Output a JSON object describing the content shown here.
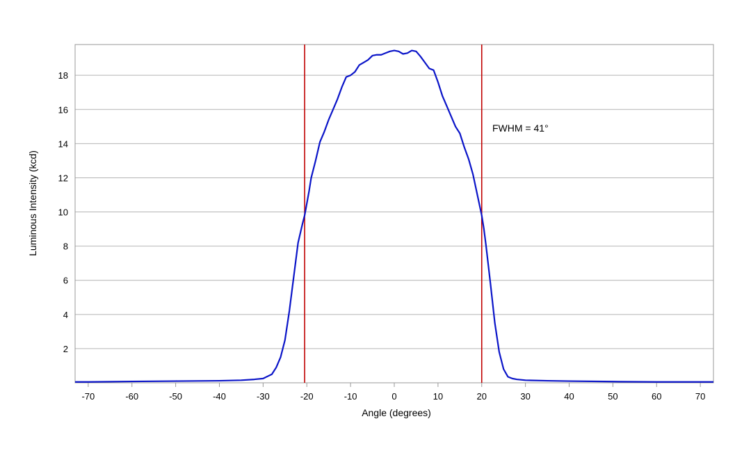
{
  "chart_data": {
    "type": "line",
    "title": "",
    "xlabel": "Angle (degrees)",
    "ylabel": "Luminous Intensity (kcd)",
    "xlim": [
      -73,
      73
    ],
    "ylim": [
      0,
      19.8
    ],
    "x_ticks": [
      -70,
      -60,
      -50,
      -40,
      -30,
      -20,
      -10,
      0,
      10,
      20,
      30,
      40,
      50,
      60,
      70
    ],
    "y_ticks": [
      2,
      4,
      6,
      8,
      10,
      12,
      14,
      16,
      18
    ],
    "grid": "horizontal",
    "legend": "none",
    "annotation": "FWHM = 41°",
    "colors": {
      "series": "#0a14c8",
      "markers": "#c00000",
      "grid": "#b4b4b4",
      "frame": "#999999"
    },
    "vertical_markers": [
      -20.5,
      20
    ],
    "series": [
      {
        "x": [
          -73,
          -70,
          -60,
          -50,
          -40,
          -35,
          -32,
          -30,
          -28,
          -27,
          -26,
          -25,
          -24,
          -23,
          -22,
          -21,
          -20.5,
          -20,
          -19.5,
          -19,
          -18,
          -17,
          -16,
          -15,
          -14,
          -13,
          -12,
          -11,
          -10,
          -9,
          -8,
          -7,
          -6,
          -5,
          -4,
          -3,
          -2,
          -1,
          0,
          1,
          2,
          3,
          4,
          5,
          6,
          7,
          8,
          9,
          10,
          11,
          12,
          13,
          14,
          15,
          16,
          17,
          18,
          19,
          20,
          20.5,
          21,
          22,
          23,
          24,
          25,
          26,
          27,
          28,
          30,
          35,
          40,
          50,
          60,
          70,
          73
        ],
        "y": [
          0.05,
          0.05,
          0.08,
          0.1,
          0.12,
          0.15,
          0.2,
          0.25,
          0.5,
          0.9,
          1.5,
          2.5,
          4.2,
          6.2,
          8.2,
          9.3,
          9.8,
          10.5,
          11.2,
          12.0,
          13.0,
          14.1,
          14.7,
          15.4,
          16.0,
          16.6,
          17.3,
          17.9,
          18.0,
          18.2,
          18.6,
          18.75,
          18.9,
          19.15,
          19.2,
          19.2,
          19.3,
          19.4,
          19.45,
          19.4,
          19.25,
          19.3,
          19.45,
          19.4,
          19.1,
          18.75,
          18.4,
          18.3,
          17.6,
          16.8,
          16.2,
          15.6,
          15.0,
          14.6,
          13.8,
          13.1,
          12.2,
          11.0,
          9.8,
          9.0,
          8.0,
          5.8,
          3.5,
          1.8,
          0.8,
          0.35,
          0.25,
          0.2,
          0.15,
          0.12,
          0.1,
          0.07,
          0.05,
          0.05,
          0.05
        ]
      }
    ]
  }
}
